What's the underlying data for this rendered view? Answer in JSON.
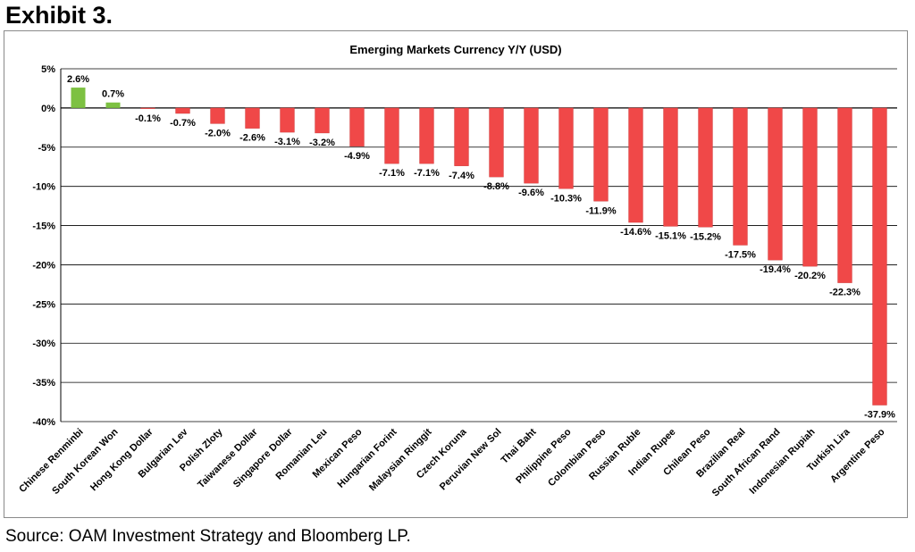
{
  "exhibit_label": "Exhibit 3.",
  "source_note": "Source: OAM Investment Strategy and Bloomberg LP.",
  "colors": {
    "positive": "#7dc142",
    "negative": "#f04848",
    "grid": "#000000"
  },
  "chart_data": {
    "type": "bar",
    "title": "Emerging Markets Currency Y/Y (USD)",
    "xlabel": "",
    "ylabel": "",
    "ylim": [
      -40,
      5
    ],
    "ytick_values": [
      5,
      0,
      -5,
      -10,
      -15,
      -20,
      -25,
      -30,
      -35,
      -40
    ],
    "ytick_labels": [
      "5%",
      "0%",
      "-5%",
      "-10%",
      "-15%",
      "-20%",
      "-25%",
      "-30%",
      "-35%",
      "-40%"
    ],
    "grid": true,
    "categories": [
      "Chinese Renminbi",
      "South Korean Won",
      "Hong Kong Dollar",
      "Bulgarian Lev",
      "Polish Zloty",
      "Taiwanese Dollar",
      "Singapore Dollar",
      "Romanian Leu",
      "Mexican Peso",
      "Hungarian Forint",
      "Malaysian Ringgit",
      "Czech Koruna",
      "Peruvian New Sol",
      "Thai Baht",
      "Philippine Peso",
      "Colombian Peso",
      "Russian Ruble",
      "Indian Rupee",
      "Chilean Peso",
      "Brazilian Real",
      "South African Rand",
      "Indonesian Rupiah",
      "Turkish Lira",
      "Argentine Peso"
    ],
    "values": [
      2.6,
      0.7,
      -0.1,
      -0.7,
      -2.0,
      -2.6,
      -3.1,
      -3.2,
      -4.9,
      -7.1,
      -7.1,
      -7.4,
      -8.8,
      -9.6,
      -10.3,
      -11.9,
      -14.6,
      -15.1,
      -15.2,
      -17.5,
      -19.4,
      -20.2,
      -22.3,
      -37.9
    ],
    "data_labels": [
      "2.6%",
      "0.7%",
      "-0.1%",
      "-0.7%",
      "-2.0%",
      "-2.6%",
      "-3.1%",
      "-3.2%",
      "-4.9%",
      "-7.1%",
      "-7.1%",
      "-7.4%",
      "-8.8%",
      "-9.6%",
      "-10.3%",
      "-11.9%",
      "-14.6%",
      "-15.1%",
      "-15.2%",
      "-17.5%",
      "-19.4%",
      "-20.2%",
      "-22.3%",
      "-37.9%"
    ]
  }
}
